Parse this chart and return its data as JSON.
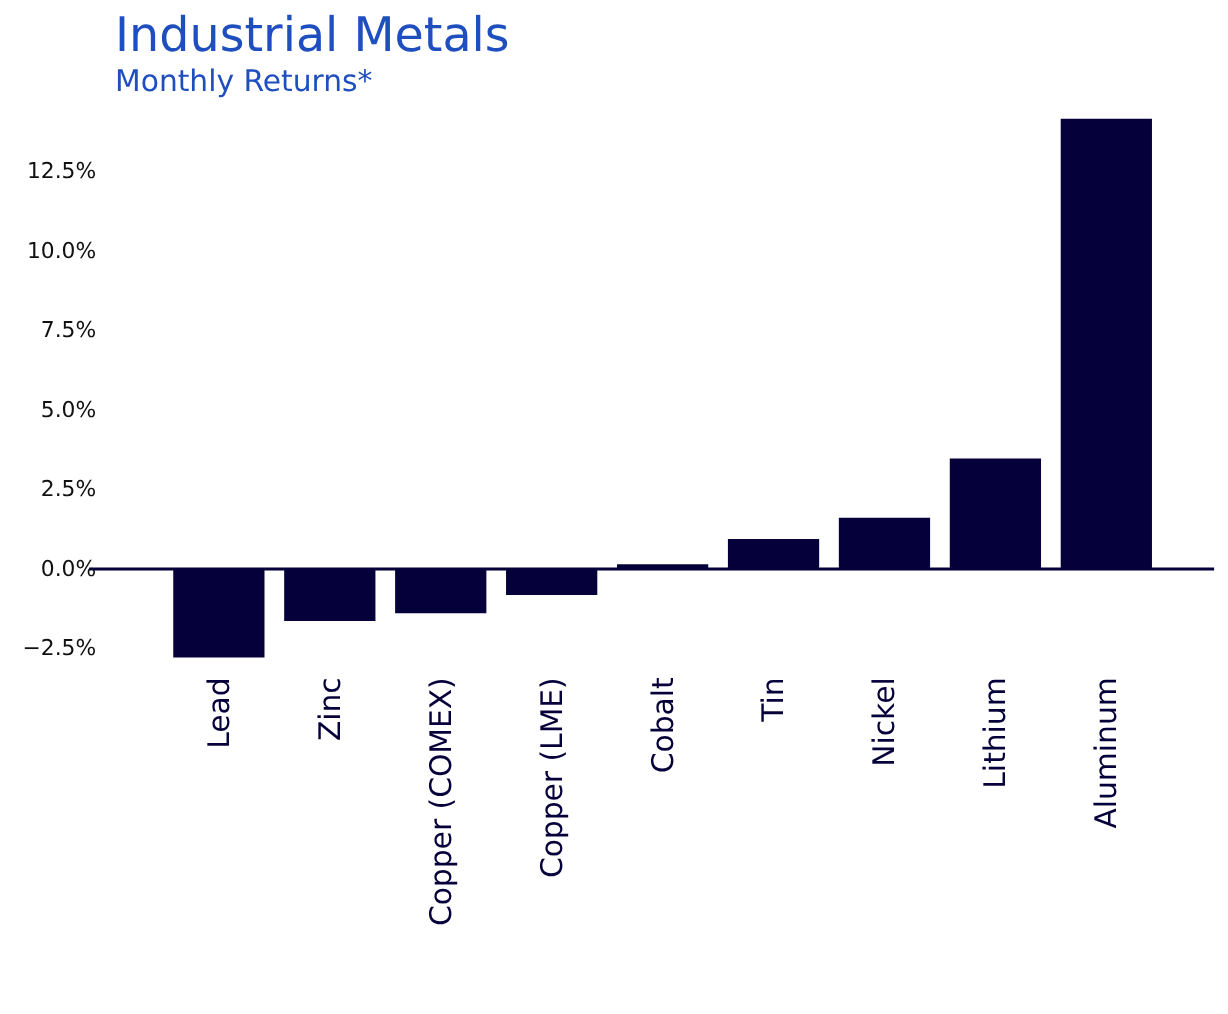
{
  "chart_data": {
    "type": "bar",
    "title": "Industrial Metals",
    "subtitle": "Monthly Returns*",
    "categories": [
      "Lead",
      "Zinc",
      "Copper (COMEX)",
      "Copper (LME)",
      "Cobalt",
      "Tin",
      "Nickel",
      "Lithium",
      "Aluminum"
    ],
    "values": [
      -2.78,
      -1.64,
      -1.39,
      -0.82,
      0.15,
      0.94,
      1.61,
      3.47,
      14.14
    ],
    "color": "#06003a",
    "ylim": [
      -3.0,
      14.2
    ],
    "yticks": [
      {
        "value": -2.5,
        "label": "−2.5%"
      },
      {
        "value": 0,
        "label": "0.0%"
      },
      {
        "value": 2.5,
        "label": "2.5%"
      },
      {
        "value": 5,
        "label": "5.0%"
      },
      {
        "value": 7.5,
        "label": "7.5%"
      },
      {
        "value": 10,
        "label": "10.0%"
      },
      {
        "value": 12.5,
        "label": "12.5%"
      }
    ],
    "ref_lines": [
      {
        "axis": "y",
        "value": 0,
        "color": "#06003a"
      }
    ],
    "grid": false
  }
}
